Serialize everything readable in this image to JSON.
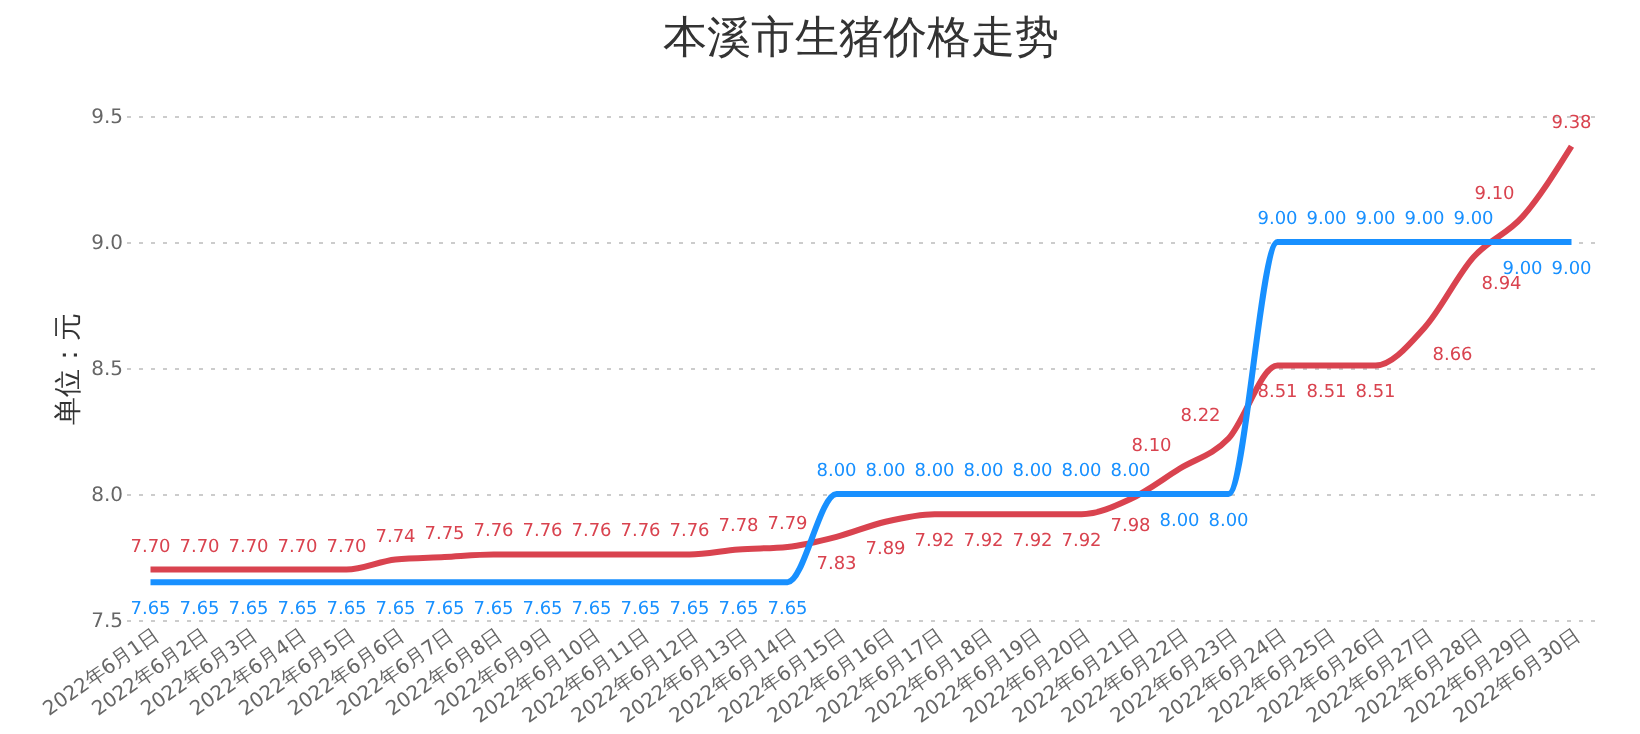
{
  "chart_data": {
    "type": "line",
    "title": "本溪市生猪价格走势",
    "ylabel": "单位：元",
    "categories": [
      "2022年6月1日",
      "2022年6月2日",
      "2022年6月3日",
      "2022年6月4日",
      "2022年6月5日",
      "2022年6月6日",
      "2022年6月7日",
      "2022年6月8日",
      "2022年6月9日",
      "2022年6月10日",
      "2022年6月11日",
      "2022年6月12日",
      "2022年6月13日",
      "2022年6月14日",
      "2022年6月15日",
      "2022年6月16日",
      "2022年6月17日",
      "2022年6月18日",
      "2022年6月19日",
      "2022年6月20日",
      "2022年6月21日",
      "2022年6月22日",
      "2022年6月23日",
      "2022年6月24日",
      "2022年6月25日",
      "2022年6月26日",
      "2022年6月27日",
      "2022年6月28日",
      "2022年6月29日",
      "2022年6月30日"
    ],
    "series": [
      {
        "color": "#d9434f",
        "values": [
          7.7,
          7.7,
          7.7,
          7.7,
          7.7,
          7.74,
          7.75,
          7.76,
          7.76,
          7.76,
          7.76,
          7.76,
          7.78,
          7.79,
          7.83,
          7.89,
          7.92,
          7.92,
          7.92,
          7.92,
          7.98,
          8.1,
          8.22,
          8.51,
          8.51,
          8.51,
          8.66,
          8.94,
          9.1,
          9.38
        ],
        "value_labels": [
          "7.70",
          "7.70",
          "7.70",
          "7.70",
          "7.70",
          "7.74",
          "7.75",
          "7.76",
          "7.76",
          "7.76",
          "7.76",
          "7.76",
          "7.78",
          "7.79",
          "7.83",
          "7.89",
          "7.92",
          "7.92",
          "7.92",
          "7.92",
          "7.98",
          "8.10",
          "8.22",
          "8.51",
          "8.51",
          "8.51",
          "8.66",
          "8.94",
          "9.10",
          "9.38"
        ]
      },
      {
        "color": "#1890ff",
        "values": [
          7.65,
          7.65,
          7.65,
          7.65,
          7.65,
          7.65,
          7.65,
          7.65,
          7.65,
          7.65,
          7.65,
          7.65,
          7.65,
          7.65,
          8.0,
          8.0,
          8.0,
          8.0,
          8.0,
          8.0,
          8.0,
          8.0,
          8.0,
          9.0,
          9.0,
          9.0,
          9.0,
          9.0,
          9.0,
          9.0
        ],
        "value_labels": [
          "7.65",
          "7.65",
          "7.65",
          "7.65",
          "7.65",
          "7.65",
          "7.65",
          "7.65",
          "7.65",
          "7.65",
          "7.65",
          "7.65",
          "7.65",
          "7.65",
          "8.00",
          "8.00",
          "8.00",
          "8.00",
          "8.00",
          "8.00",
          "8.00",
          "8.00",
          "8.00",
          "9.00",
          "9.00",
          "9.00",
          "9.00",
          "9.00",
          "9.00",
          "9.00"
        ]
      }
    ],
    "ylim": [
      7.5,
      9.5
    ],
    "yticks": [
      7.5,
      {
        "value": 8.0,
        "label": "8.0"
      },
      8.5,
      {
        "value": 9.0,
        "label": "9.0"
      },
      9.5
    ],
    "grid": "y"
  }
}
